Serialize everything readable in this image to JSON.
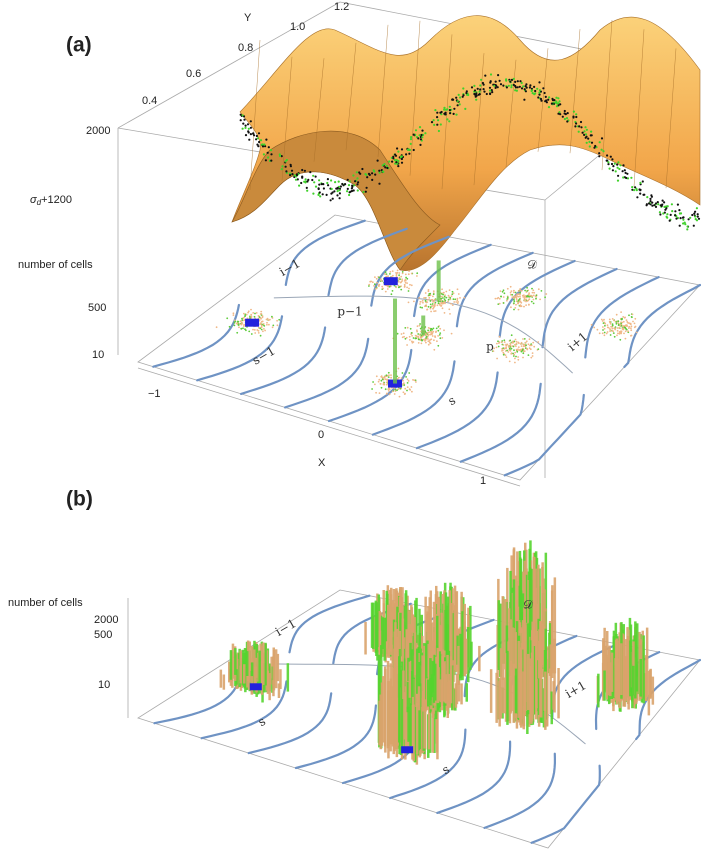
{
  "panels": [
    {
      "label": "(a)",
      "axis_labels": {
        "y": "Y",
        "x": "X",
        "z_upper": {
          "base": "σ",
          "sub": "d",
          "suffix": "+1200"
        },
        "z_lower": "number of cells"
      },
      "y_ticks": [
        "0.4",
        "0.6",
        "0.8",
        "1.0",
        "1.2"
      ],
      "z_upper_ticks": [
        "2000"
      ],
      "z_lower_ticks": [
        "500",
        "10"
      ],
      "x_ticks": [
        "−1",
        "0",
        "1"
      ],
      "region_labels": [
        "i−1",
        "p−1",
        "𝒟",
        "p",
        "i+1",
        "s−1",
        "s"
      ]
    },
    {
      "label": "(b)",
      "axis_labels": {
        "z": "number of cells"
      },
      "z_ticks": [
        "2000",
        "500",
        "10"
      ],
      "region_labels": [
        "i−1",
        "𝒟",
        "i+1",
        "s",
        "s"
      ]
    }
  ]
}
